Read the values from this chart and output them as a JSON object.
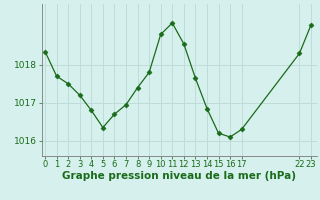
{
  "x_values": [
    0,
    1,
    2,
    3,
    4,
    5,
    6,
    7,
    8,
    9,
    10,
    11,
    12,
    13,
    14,
    15,
    16,
    17,
    22,
    23
  ],
  "y_values": [
    1018.35,
    1017.7,
    1017.5,
    1017.2,
    1016.8,
    1016.35,
    1016.7,
    1016.95,
    1017.4,
    1017.8,
    1018.8,
    1019.1,
    1018.55,
    1017.65,
    1016.85,
    1016.2,
    1016.1,
    1016.3,
    1018.3,
    1019.05
  ],
  "line_color": "#1a6b1a",
  "marker": "D",
  "marker_size": 2.5,
  "bg_color": "#d6f0ee",
  "grid_color": "#c0dcd8",
  "ylabel_ticks": [
    1016,
    1017,
    1018
  ],
  "ylim": [
    1015.6,
    1019.6
  ],
  "xlim": [
    -0.3,
    23.5
  ],
  "xlabel": "Graphe pression niveau de la mer (hPa)",
  "xlabel_color": "#1a6b1a",
  "tick_color": "#1a6b1a",
  "axis_color": "#888888",
  "font_size": 6.5
}
